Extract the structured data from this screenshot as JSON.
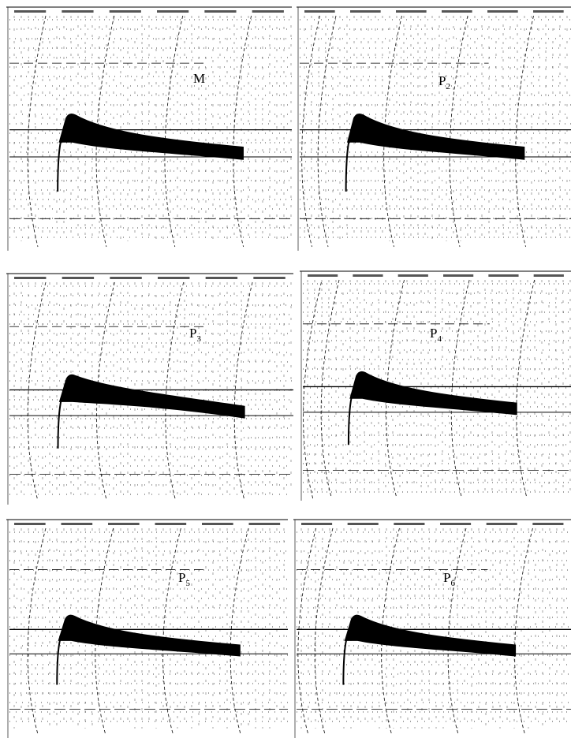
{
  "panels": [
    {
      "label": "M"
    },
    {
      "label": "P",
      "subscript": "2"
    },
    {
      "label": "P",
      "subscript": "3"
    },
    {
      "label": "P",
      "subscript": "4"
    },
    {
      "label": "P",
      "subscript": "5"
    },
    {
      "label": "P",
      "subscript": "6"
    }
  ]
}
